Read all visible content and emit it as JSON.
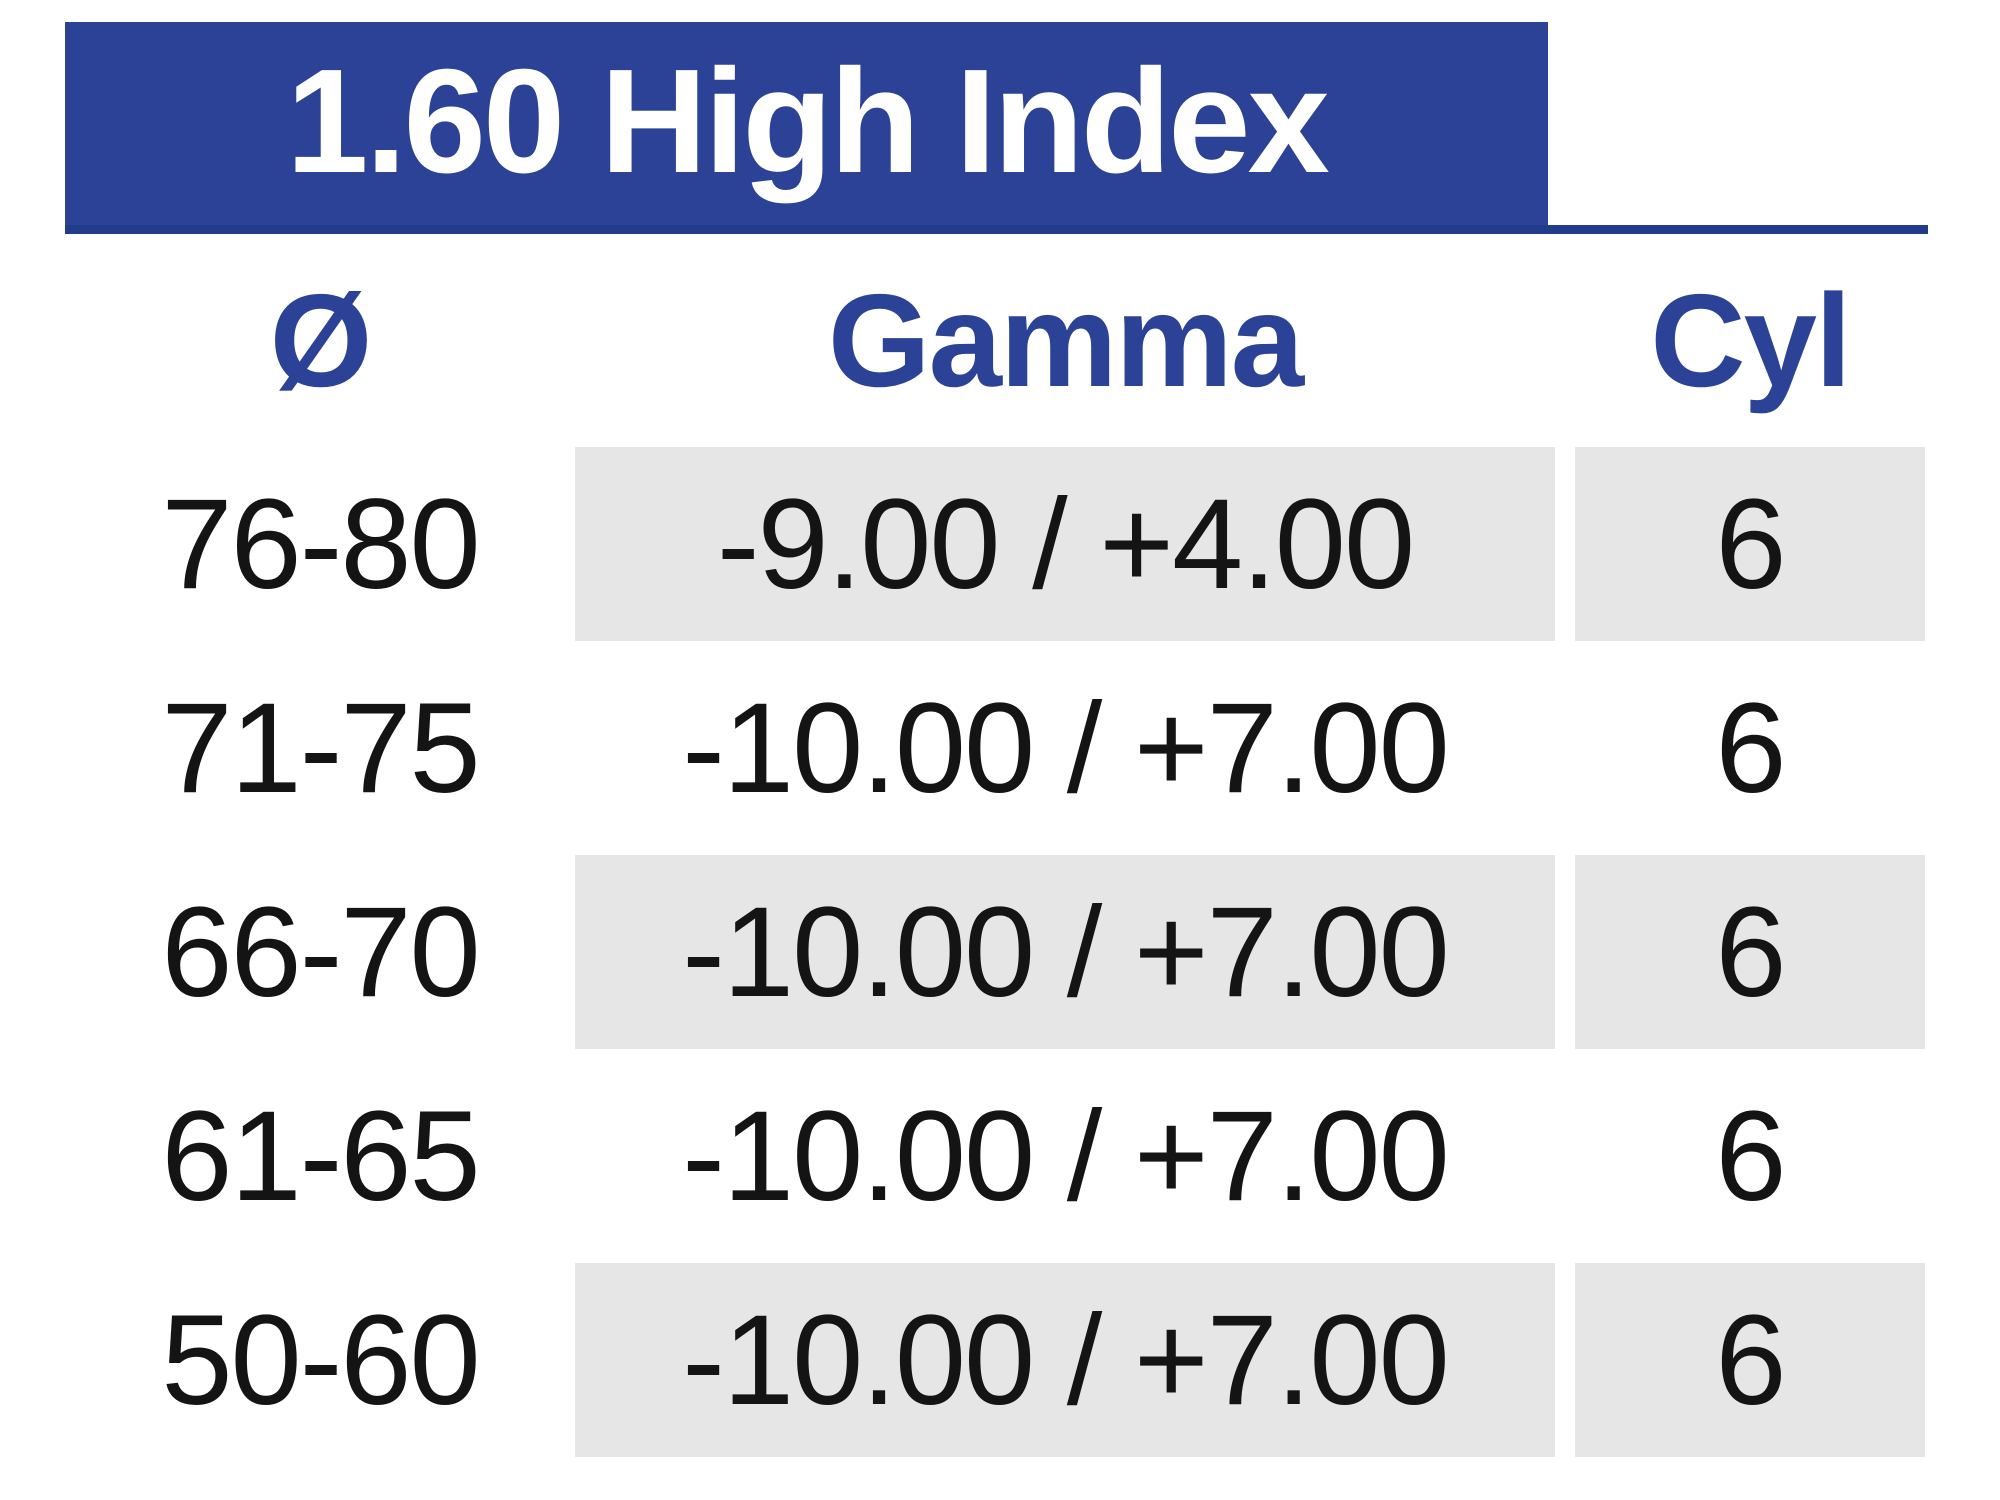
{
  "table": {
    "title": "1.60 High Index",
    "columns": [
      {
        "key": "diameter",
        "label": "Ø"
      },
      {
        "key": "gamma",
        "label": "Gamma"
      },
      {
        "key": "cyl",
        "label": "Cyl"
      }
    ],
    "rows": [
      {
        "diameter": "76-80",
        "gamma": "-9.00 / +4.00",
        "cyl": "6"
      },
      {
        "diameter": "71-75",
        "gamma": "-10.00 / +7.00",
        "cyl": "6"
      },
      {
        "diameter": "66-70",
        "gamma": "-10.00 / +7.00",
        "cyl": "6"
      },
      {
        "diameter": "61-65",
        "gamma": "-10.00 / +7.00",
        "cyl": "6"
      },
      {
        "diameter": "50-60",
        "gamma": "-10.00 / +7.00",
        "cyl": "6"
      }
    ],
    "colors": {
      "banner_blue": "#2B4296",
      "rule_blue": "#223C8C",
      "header_text_blue": "#2B4296",
      "shaded_cell_gray": "#E6E6E6",
      "body_text": "#141414",
      "title_text": "#FFFFFF"
    }
  }
}
